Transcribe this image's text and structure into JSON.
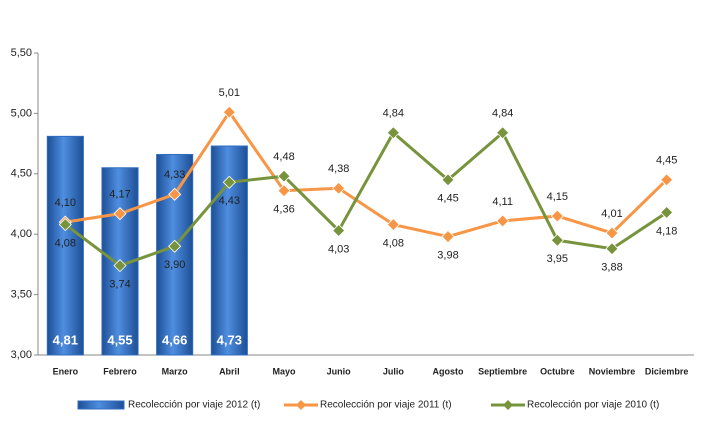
{
  "chart_data": {
    "type": "bar",
    "categories": [
      "Enero",
      "Febrero",
      "Marzo",
      "Abril",
      "Mayo",
      "Junio",
      "Julio",
      "Agosto",
      "Septiembre",
      "Octubre",
      "Noviembre",
      "Diciembre"
    ],
    "ylim": [
      3.0,
      5.5
    ],
    "yticks": [
      {
        "value": 3.0,
        "label": "3,00"
      },
      {
        "value": 3.5,
        "label": "3,50"
      },
      {
        "value": 4.0,
        "label": "4,00"
      },
      {
        "value": 4.5,
        "label": "4,50"
      },
      {
        "value": 5.0,
        "label": "5,00"
      },
      {
        "value": 5.5,
        "label": "5,50"
      }
    ],
    "series": [
      {
        "name": "Recolección por viaje 2012 (t)",
        "type": "bar",
        "color": "#2f6cc0",
        "values": [
          4.81,
          4.55,
          4.66,
          4.73,
          null,
          null,
          null,
          null,
          null,
          null,
          null,
          null
        ],
        "value_labels": [
          "4,81",
          "4,55",
          "4,66",
          "4,73",
          null,
          null,
          null,
          null,
          null,
          null,
          null,
          null
        ]
      },
      {
        "name": "Recolección por viaje 2011 (t)",
        "type": "line",
        "color": "#f79646",
        "values": [
          4.1,
          4.17,
          4.33,
          5.01,
          4.36,
          4.38,
          4.08,
          3.98,
          4.11,
          4.15,
          4.01,
          4.45
        ],
        "value_labels": [
          "4,10",
          "4,17",
          "4,33",
          "5,01",
          "4,36",
          "4,38",
          "4,08",
          "3,98",
          "4,11",
          "4,15",
          "4,01",
          "4,45"
        ]
      },
      {
        "name": "Recolección por viaje 2010 (t)",
        "type": "line",
        "color": "#77933c",
        "values": [
          4.08,
          3.74,
          3.9,
          4.43,
          4.48,
          4.03,
          4.84,
          4.45,
          4.84,
          3.95,
          3.88,
          4.18
        ],
        "value_labels": [
          "4,08",
          "3,74",
          "3,90",
          "4,43",
          "4,48",
          "4,03",
          "4,84",
          "4,45",
          "4,84",
          "3,95",
          "3,88",
          "4,18"
        ]
      }
    ],
    "legend": "bottom"
  }
}
